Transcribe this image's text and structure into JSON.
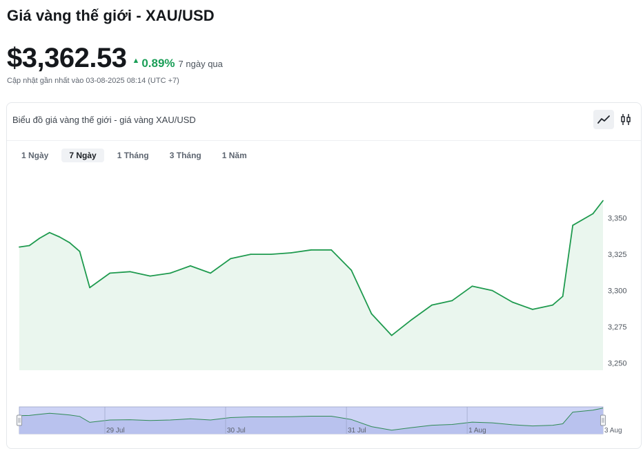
{
  "header": {
    "title": "Giá vàng thế giới - XAU/USD",
    "price": "$3,362.53",
    "change_pct": "0.89%",
    "change_period": "7 ngày qua",
    "updated": "Cập nhật gần nhất vào 03-08-2025 08:14 (UTC +7)"
  },
  "card": {
    "title": "Biểu đồ giá vàng thế giới - giá vàng XAU/USD",
    "tabs": [
      "1 Ngày",
      "7 Ngày",
      "1 Tháng",
      "3 Tháng",
      "1 Năm"
    ],
    "active_tab": "7 Ngày"
  },
  "colors": {
    "up": "#1a9e57",
    "line": "#1e9a4e",
    "fill": "#eaf6ee",
    "navigator_fill": "#cdd3f5"
  },
  "chart_data": {
    "type": "area",
    "title": "",
    "xlabel": "",
    "ylabel": "",
    "ylim": [
      3245,
      3367
    ],
    "y_ticks": [
      3250,
      3275,
      3300,
      3325,
      3350
    ],
    "y_tick_labels": [
      "3,250",
      "3,275",
      "3,300",
      "3,325",
      "3,350"
    ],
    "x_range": [
      "2025-07-28 07:00",
      "2025-08-02 03:00"
    ],
    "x": [
      "07-28 07:00",
      "07-28 09:00",
      "07-28 11:00",
      "07-28 13:00",
      "07-28 15:00",
      "07-28 17:00",
      "07-28 19:00",
      "07-28 21:00",
      "07-29 01:00",
      "07-29 05:00",
      "07-29 09:00",
      "07-29 13:00",
      "07-29 17:00",
      "07-29 21:00",
      "07-30 01:00",
      "07-30 05:00",
      "07-30 09:00",
      "07-30 13:00",
      "07-30 17:00",
      "07-30 21:00",
      "07-31 01:00",
      "07-31 05:00",
      "07-31 09:00",
      "07-31 13:00",
      "07-31 17:00",
      "07-31 21:00",
      "08-01 01:00",
      "08-01 05:00",
      "08-01 09:00",
      "08-01 13:00",
      "08-01 17:00",
      "08-01 19:00",
      "08-01 21:00",
      "08-02 01:00",
      "08-02 03:00"
    ],
    "series": [
      {
        "values": [
          3330,
          3331,
          3336,
          3340,
          3337,
          3333,
          3327,
          3302,
          3312,
          3313,
          3310,
          3312,
          3317,
          3312,
          3322,
          3325,
          3325,
          3326,
          3328,
          3328,
          3314,
          3284,
          3269,
          3280,
          3290,
          3293,
          3303,
          3300,
          3292,
          3287,
          3290,
          3296,
          3345,
          3353,
          3362
        ]
      }
    ],
    "navigator": {
      "x_labels": [
        "29 Jul",
        "30 Jul",
        "31 Jul",
        "1 Aug",
        "3 Aug"
      ]
    }
  }
}
